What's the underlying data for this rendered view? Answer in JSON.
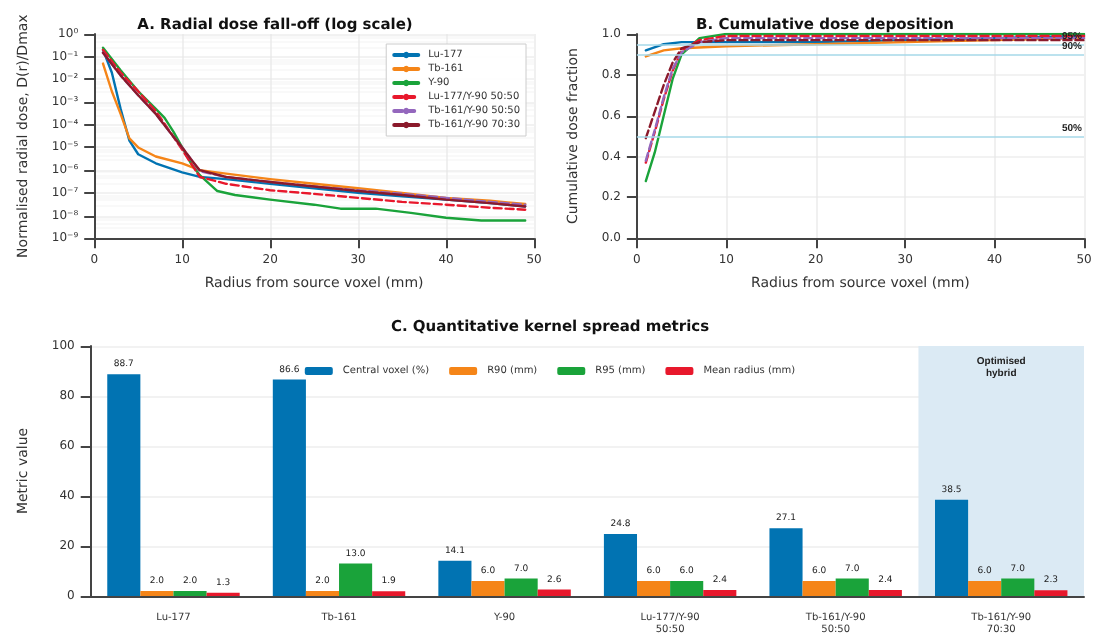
{
  "chart_data": [
    {
      "type": "line",
      "title": "A. Radial dose fall-off (log scale)",
      "xlabel": "Radius from source voxel (mm)",
      "ylabel": "Normalised radial dose, D(r)/Dmax",
      "log": "y",
      "grid": true,
      "legend": "top right",
      "marker": "none",
      "xlim": [
        0,
        50
      ],
      "xticks": [
        0,
        10,
        20,
        30,
        40,
        50
      ],
      "ylim": [
        1e-09,
        1
      ],
      "yticks": [
        {
          "value": 1,
          "label": "10⁰"
        },
        {
          "value": 0.1,
          "label": "10⁻¹"
        },
        {
          "value": 0.01,
          "label": "10⁻²"
        },
        {
          "value": 0.001,
          "label": "10⁻³"
        },
        {
          "value": 0.0001,
          "label": "10⁻⁴"
        },
        {
          "value": 1e-05,
          "label": "10⁻⁵"
        },
        {
          "value": 1e-06,
          "label": "10⁻⁶"
        },
        {
          "value": 1e-07,
          "label": "10⁻⁷"
        },
        {
          "value": 1e-08,
          "label": "10⁻⁸"
        },
        {
          "value": 1e-09,
          "label": "10⁻⁹"
        }
      ],
      "series": [
        {
          "name": "Lu-177",
          "color": "#0173b2",
          "line_style": "solid",
          "x": [
            1,
            2,
            3,
            4,
            5,
            7,
            10,
            12,
            15,
            20,
            25,
            30,
            35,
            40,
            45,
            49
          ],
          "values": [
            0.2,
            0.02,
            0.0005,
            2e-05,
            5e-06,
            2e-06,
            8e-07,
            5e-07,
            4e-07,
            2.5e-07,
            1.6e-07,
            1e-07,
            7e-08,
            5e-08,
            3.5e-08,
            2.5e-08
          ]
        },
        {
          "name": "Tb-161",
          "color": "#f58518",
          "line_style": "solid",
          "x": [
            1,
            2,
            3,
            4,
            5,
            7,
            10,
            12,
            15,
            20,
            25,
            30,
            35,
            40,
            45,
            49
          ],
          "values": [
            0.05,
            0.003,
            0.0003,
            2.5e-05,
            1e-05,
            4e-06,
            2e-06,
            1e-06,
            7e-07,
            4e-07,
            2.5e-07,
            1.6e-07,
            1e-07,
            6e-08,
            4.5e-08,
            3.2e-08
          ]
        },
        {
          "name": "Y-90",
          "color": "#1aa33a",
          "line_style": "solid",
          "x": [
            1,
            3,
            5,
            7,
            8,
            9,
            10,
            11,
            12,
            14,
            16,
            20,
            25,
            28,
            32,
            36,
            40,
            44,
            49
          ],
          "values": [
            0.25,
            0.025,
            0.003,
            0.0005,
            0.0002,
            5e-05,
            1e-05,
            2e-06,
            6e-07,
            1.2e-07,
            8e-08,
            5e-08,
            3e-08,
            2e-08,
            2e-08,
            1.3e-08,
            8e-09,
            6e-09,
            6e-09
          ]
        },
        {
          "name": "Lu-177/Y-90 50:50",
          "color": "#e8182c",
          "line_style": "dashed",
          "x": [
            1,
            3,
            5,
            7,
            9,
            10,
            11,
            12,
            15,
            20,
            25,
            30,
            35,
            40,
            45,
            49
          ],
          "values": [
            0.2,
            0.02,
            0.003,
            0.0004,
            3e-05,
            8e-06,
            2e-06,
            5e-07,
            2.5e-07,
            1.3e-07,
            9e-08,
            6e-08,
            4e-08,
            3e-08,
            2.2e-08,
            1.8e-08
          ]
        },
        {
          "name": "Tb-161/Y-90 50:50",
          "color": "#9467bd",
          "line_style": "dashed",
          "x": [
            1,
            3,
            5,
            7,
            9,
            10,
            11,
            12,
            15,
            20,
            25,
            30,
            35,
            40,
            45,
            49
          ],
          "values": [
            0.15,
            0.015,
            0.002,
            0.0003,
            3e-05,
            1e-05,
            3e-06,
            9e-07,
            5e-07,
            3e-07,
            1.9e-07,
            1.3e-07,
            9e-08,
            6e-08,
            4e-08,
            3e-08
          ]
        },
        {
          "name": "Tb-161/Y-90 70:30",
          "color": "#8b1a2b",
          "line_style": "solid",
          "x": [
            1,
            3,
            5,
            7,
            9,
            10,
            11,
            12,
            15,
            20,
            25,
            30,
            35,
            40,
            45,
            49
          ],
          "values": [
            0.15,
            0.015,
            0.002,
            0.0003,
            3e-05,
            1e-05,
            3e-06,
            1e-06,
            5e-07,
            3e-07,
            1.9e-07,
            1.2e-07,
            8e-08,
            5e-08,
            3.5e-08,
            2.5e-08
          ]
        }
      ]
    },
    {
      "type": "line",
      "title": "B. Cumulative dose deposition",
      "xlabel": "Radius from source voxel (mm)",
      "ylabel": "Cumulative dose fraction",
      "grid": true,
      "marker": "none",
      "xlim": [
        0,
        50
      ],
      "xticks": [
        0,
        10,
        20,
        30,
        40,
        50
      ],
      "ylim": [
        0,
        1
      ],
      "yticks": [
        {
          "value": 0,
          "label": "0.0"
        },
        {
          "value": 0.2,
          "label": "0.2"
        },
        {
          "value": 0.4,
          "label": "0.4"
        },
        {
          "value": 0.6,
          "label": "0.6"
        },
        {
          "value": 0.8,
          "label": "0.8"
        },
        {
          "value": 1,
          "label": "1.0"
        }
      ],
      "ref_lines": [
        {
          "axis": "y",
          "value": 0.95,
          "label": "95%",
          "color": "#a6d8e8"
        },
        {
          "axis": "y",
          "value": 0.9,
          "label": "90%",
          "color": "#a6d8e8"
        },
        {
          "axis": "y",
          "value": 0.5,
          "label": "50%",
          "color": "#a6d8e8"
        }
      ],
      "series": [
        {
          "color": "#0173b2",
          "line_style": "solid",
          "x": [
            1,
            3,
            5,
            10,
            20,
            30,
            40,
            50
          ],
          "values": [
            0.92,
            0.95,
            0.96,
            0.96,
            0.96,
            0.97,
            0.98,
            0.99
          ]
        },
        {
          "color": "#f58518",
          "line_style": "solid",
          "x": [
            1,
            3,
            5,
            10,
            20,
            30,
            40,
            50
          ],
          "values": [
            0.89,
            0.92,
            0.93,
            0.94,
            0.95,
            0.96,
            0.97,
            0.98
          ]
        },
        {
          "color": "#1aa33a",
          "line_style": "solid",
          "x": [
            1,
            2,
            3,
            4,
            5,
            7,
            10,
            20,
            30,
            40,
            50
          ],
          "values": [
            0.28,
            0.42,
            0.6,
            0.78,
            0.9,
            0.98,
            1,
            1,
            1,
            1,
            1
          ]
        },
        {
          "color": "#e8182c",
          "line_style": "dashed",
          "x": [
            1,
            2,
            3,
            4,
            5,
            7,
            10,
            20,
            30,
            40,
            50
          ],
          "values": [
            0.37,
            0.52,
            0.68,
            0.82,
            0.92,
            0.97,
            0.99,
            0.99,
            0.99,
            0.99,
            0.99
          ]
        },
        {
          "color": "#9467bd",
          "line_style": "dashed",
          "x": [
            1,
            2,
            3,
            4,
            5,
            7,
            10,
            20,
            30,
            40,
            50
          ],
          "values": [
            0.38,
            0.53,
            0.69,
            0.83,
            0.91,
            0.96,
            0.98,
            0.98,
            0.98,
            0.98,
            0.98
          ]
        },
        {
          "color": "#8b1a2b",
          "line_style": "dashed",
          "x": [
            1,
            2,
            3,
            4,
            5,
            7,
            10,
            20,
            30,
            40,
            50
          ],
          "values": [
            0.49,
            0.62,
            0.75,
            0.86,
            0.93,
            0.96,
            0.97,
            0.97,
            0.97,
            0.97,
            0.97
          ]
        }
      ]
    },
    {
      "type": "bar",
      "title": "C. Quantitative kernel spread metrics",
      "ylabel": "Metric value",
      "grid": "y",
      "legend": "top",
      "categories": [
        "Lu-177",
        "Tb-161",
        "Y-90",
        "Lu-177/Y-90\n50:50",
        "Tb-161/Y-90\n50:50",
        "Tb-161/Y-90\n70:30"
      ],
      "ylim": [
        0,
        100
      ],
      "yticks": [
        0,
        20,
        40,
        60,
        80,
        100
      ],
      "bands": [
        {
          "axis": "x",
          "from": "Tb-161/Y-90\n70:30",
          "to": "Tb-161/Y-90\n70:30",
          "label": "Optimised\nhybrid",
          "color": "#dbeaf4"
        }
      ],
      "series": [
        {
          "name": "Central voxel (%)",
          "color": "#0173b2",
          "values": [
            88.7,
            86.6,
            14.1,
            24.8,
            27.1,
            38.5
          ],
          "value_labels": [
            "88.7",
            "86.6",
            "14.1",
            "24.8",
            "27.1",
            "38.5"
          ]
        },
        {
          "name": "R90 (mm)",
          "color": "#f58518",
          "values": [
            2,
            2,
            6,
            6,
            6,
            6
          ],
          "value_labels": [
            "2.0",
            "2.0",
            "6.0",
            "6.0",
            "6.0",
            "6.0"
          ]
        },
        {
          "name": "R95 (mm)",
          "color": "#1aa33a",
          "values": [
            2,
            13,
            7,
            6,
            7,
            7
          ],
          "value_labels": [
            "2.0",
            "13.0",
            "7.0",
            "6.0",
            "7.0",
            "7.0"
          ]
        },
        {
          "name": "Mean radius (mm)",
          "color": "#e8182c",
          "values": [
            1.3,
            1.9,
            2.6,
            2.4,
            2.4,
            2.3
          ],
          "value_labels": [
            "1.3",
            "1.9",
            "2.6",
            "2.4",
            "2.4",
            "2.3"
          ]
        }
      ]
    }
  ]
}
